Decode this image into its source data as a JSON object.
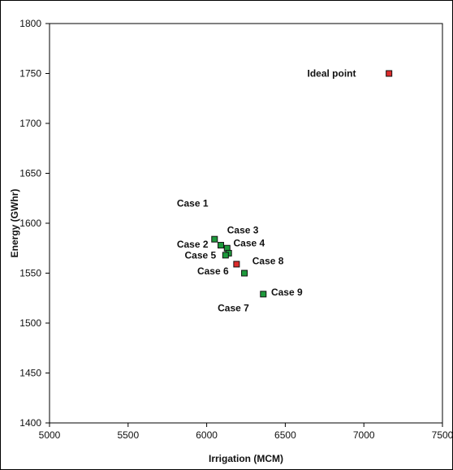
{
  "chart_data": {
    "type": "scatter",
    "title": "",
    "xlabel": "Irrigation (MCM)",
    "ylabel": "Energy (GWhr)",
    "xlim": [
      5000,
      7500
    ],
    "ylim": [
      1400,
      1800
    ],
    "xticks": [
      "5000",
      "5500",
      "6000",
      "6500",
      "7000",
      "7500"
    ],
    "yticks": [
      "1400",
      "1450",
      "1500",
      "1550",
      "1600",
      "1650",
      "1700",
      "1750",
      "1800"
    ],
    "grid": false,
    "colors": {
      "case": "#1e9a3c",
      "highlight": "#dd2b2b",
      "outline": "#111111"
    },
    "points": [
      {
        "x": 6050,
        "y": 1584,
        "color": "#1e9a3c"
      },
      {
        "x": 6090,
        "y": 1578,
        "color": "#1e9a3c"
      },
      {
        "x": 6130,
        "y": 1575,
        "color": "#1e9a3c"
      },
      {
        "x": 6140,
        "y": 1570,
        "color": "#1e9a3c"
      },
      {
        "x": 6120,
        "y": 1568,
        "color": "#1e9a3c"
      },
      {
        "x": 6190,
        "y": 1559,
        "color": "#dd2b2b"
      },
      {
        "x": 6240,
        "y": 1550,
        "color": "#1e9a3c"
      },
      {
        "x": 6360,
        "y": 1529,
        "color": "#1e9a3c"
      },
      {
        "x": 7160,
        "y": 1750,
        "color": "#dd2b2b"
      }
    ],
    "annotations": [
      {
        "text": "Case 1",
        "x": 5810,
        "y": 1620
      },
      {
        "text": "Case 3",
        "x": 6130,
        "y": 1593
      },
      {
        "text": "Case 2",
        "x": 5810,
        "y": 1579
      },
      {
        "text": "Case 4",
        "x": 6170,
        "y": 1580
      },
      {
        "text": "Case 5",
        "x": 5860,
        "y": 1568
      },
      {
        "text": "Case 8",
        "x": 6290,
        "y": 1562
      },
      {
        "text": "Case 6",
        "x": 5940,
        "y": 1552
      },
      {
        "text": "Case 9",
        "x": 6410,
        "y": 1531
      },
      {
        "text": "Case 7",
        "x": 6070,
        "y": 1515
      },
      {
        "text": "Ideal point",
        "x": 6640,
        "y": 1750
      }
    ]
  }
}
